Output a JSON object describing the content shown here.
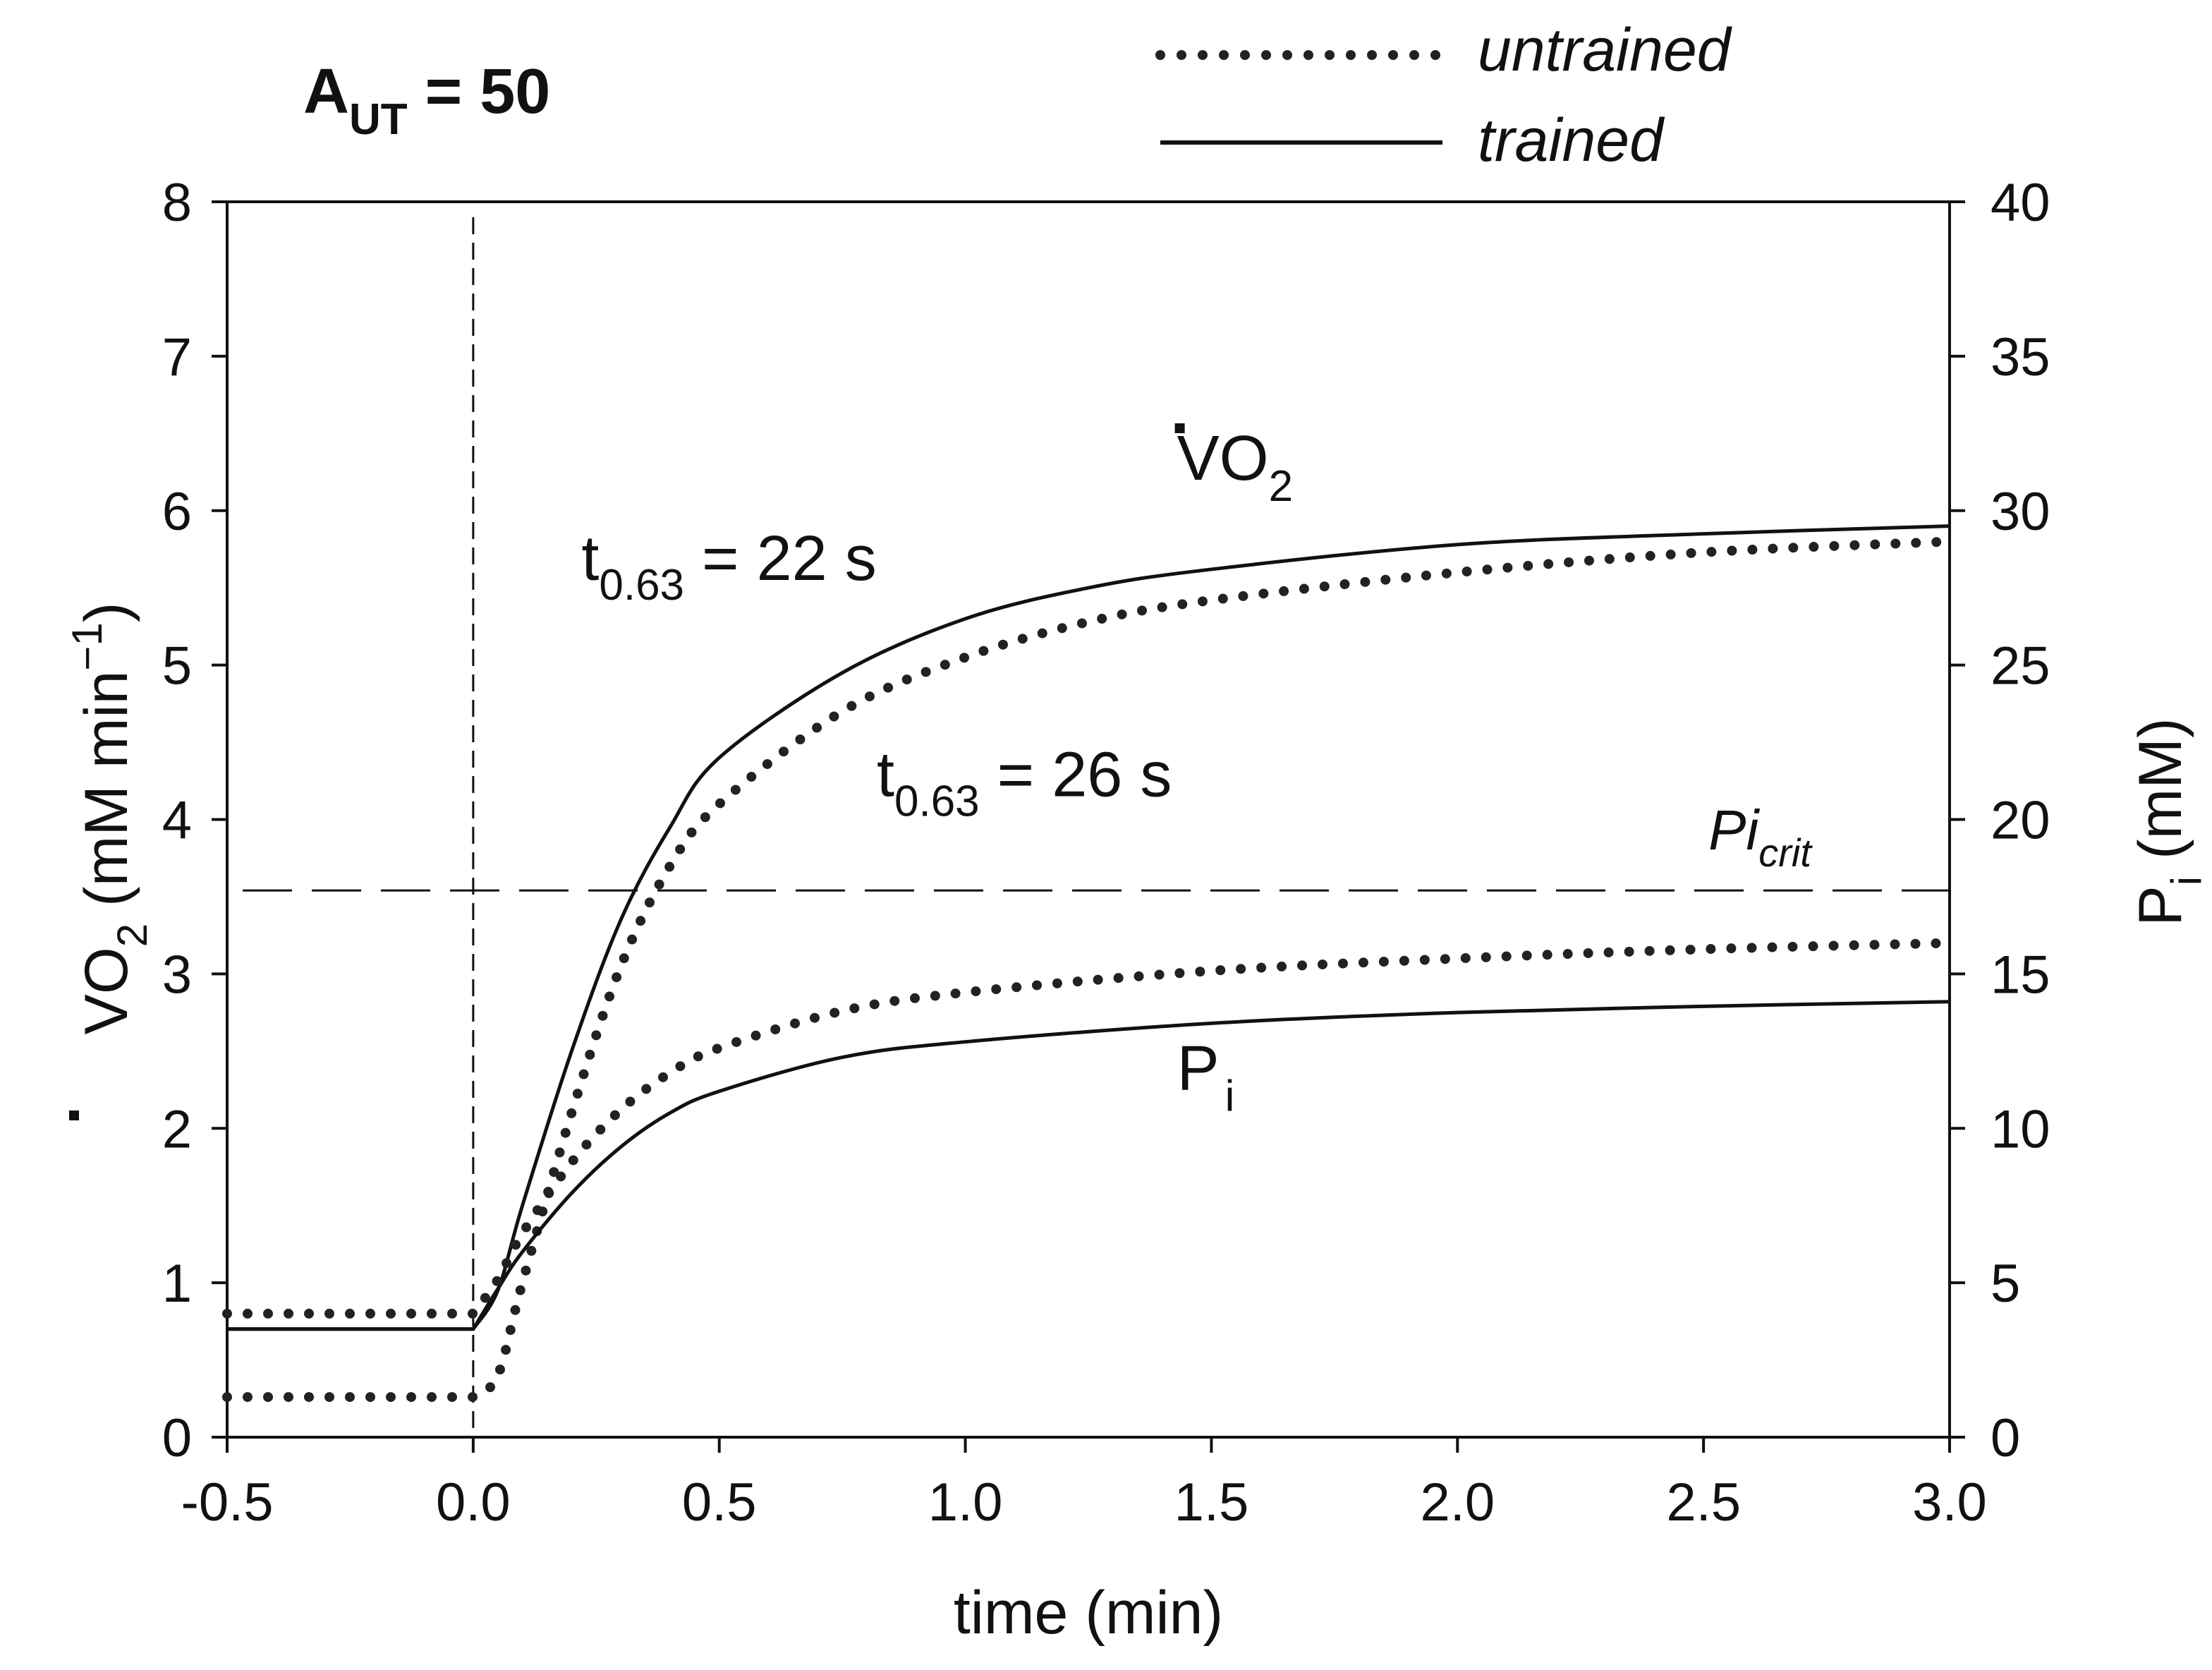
{
  "chart_data": {
    "type": "line",
    "title": "A_UT = 50",
    "title_parts": {
      "main": "A",
      "sub": "UT",
      "rest": " = 50"
    },
    "xlabel": "time (min)",
    "xlim": [
      -0.5,
      3.0
    ],
    "x_ticks": [
      -0.5,
      0.0,
      0.5,
      1.0,
      1.5,
      2.0,
      2.5,
      3.0
    ],
    "x_tick_labels": [
      "-0.5",
      "0.0",
      "0.5",
      "1.0",
      "1.5",
      "2.0",
      "2.5",
      "3.0"
    ],
    "ylabel_left": {
      "main": "VO",
      "sub": "2",
      "rest": " (mM min",
      "sup": "−1",
      "close": ")"
    },
    "ylim_left": [
      0,
      8
    ],
    "y_ticks_left": [
      0,
      1,
      2,
      3,
      4,
      5,
      6,
      7,
      8
    ],
    "y_tick_labels_left": [
      "0",
      "1",
      "2",
      "3",
      "4",
      "5",
      "6",
      "7",
      "8"
    ],
    "ylabel_right": {
      "main": "P",
      "sub": "i",
      "rest": " (mM)"
    },
    "ylim_right": [
      0,
      40
    ],
    "y_ticks_right": [
      0,
      5,
      10,
      15,
      20,
      25,
      30,
      35,
      40
    ],
    "y_tick_labels_right": [
      "0",
      "5",
      "10",
      "15",
      "20",
      "25",
      "30",
      "35",
      "40"
    ],
    "legend": {
      "position": "top-right",
      "entries": [
        {
          "label": "untrained",
          "style": "dotted"
        },
        {
          "label": "trained",
          "style": "solid"
        }
      ]
    },
    "reference_lines": [
      {
        "type": "vertical",
        "x": 0.0,
        "style": "short-dash"
      },
      {
        "type": "horizontal",
        "axis": "right",
        "y": 17.7,
        "style": "long-dash",
        "label": {
          "main": "Pi",
          "sub": "crit"
        }
      }
    ],
    "series": [
      {
        "name": "VO2 trained",
        "axis": "left",
        "style": "solid",
        "x": [
          -0.5,
          0.0,
          0.05,
          0.1,
          0.2,
          0.3,
          0.4,
          0.5,
          0.75,
          1.0,
          1.25,
          1.5,
          2.0,
          2.5,
          3.0
        ],
        "values": [
          0.7,
          0.7,
          0.95,
          1.5,
          2.5,
          3.35,
          3.95,
          4.4,
          4.95,
          5.3,
          5.5,
          5.62,
          5.78,
          5.85,
          5.9
        ]
      },
      {
        "name": "VO2 untrained",
        "axis": "left",
        "style": "dotted",
        "x": [
          -0.5,
          0.0,
          0.05,
          0.1,
          0.2,
          0.3,
          0.4,
          0.5,
          0.75,
          1.0,
          1.25,
          1.5,
          2.0,
          2.5,
          3.0
        ],
        "values": [
          0.26,
          0.26,
          0.4,
          1.0,
          2.1,
          3.05,
          3.7,
          4.1,
          4.7,
          5.05,
          5.28,
          5.42,
          5.6,
          5.73,
          5.8
        ]
      },
      {
        "name": "Pi trained",
        "axis": "right",
        "style": "solid",
        "x": [
          -0.5,
          0.0,
          0.05,
          0.1,
          0.2,
          0.3,
          0.4,
          0.5,
          0.75,
          1.0,
          1.5,
          2.0,
          2.5,
          3.0
        ],
        "values": [
          3.5,
          3.5,
          4.8,
          6.0,
          7.9,
          9.4,
          10.5,
          11.2,
          12.3,
          12.8,
          13.4,
          13.75,
          13.95,
          14.1
        ]
      },
      {
        "name": "Pi untrained",
        "axis": "right",
        "style": "dotted",
        "x": [
          -0.5,
          0.0,
          0.05,
          0.1,
          0.2,
          0.3,
          0.4,
          0.5,
          0.75,
          1.0,
          1.5,
          2.0,
          2.5,
          3.0
        ],
        "values": [
          4.0,
          4.0,
          5.1,
          6.6,
          8.9,
          10.6,
          11.8,
          12.6,
          13.8,
          14.4,
          15.1,
          15.5,
          15.8,
          16.0
        ]
      }
    ],
    "annotations": [
      {
        "id": "trained-tau",
        "main": "t",
        "sub": "0.63",
        "rest": " = 22 s",
        "x": 0.22,
        "y": 5.55,
        "axis": "left"
      },
      {
        "id": "untrained-tau",
        "main": "t",
        "sub": "0.63",
        "rest": " = 26 s",
        "x": 0.82,
        "y": 4.15,
        "axis": "left"
      },
      {
        "id": "vo2-curve-label",
        "main": "VO",
        "sub": "2",
        "dot": true,
        "x": 1.43,
        "y": 6.2,
        "axis": "left"
      },
      {
        "id": "pi-curve-label",
        "main": "P",
        "sub": "i",
        "x": 1.43,
        "y": 2.25,
        "axis": "left"
      }
    ]
  }
}
